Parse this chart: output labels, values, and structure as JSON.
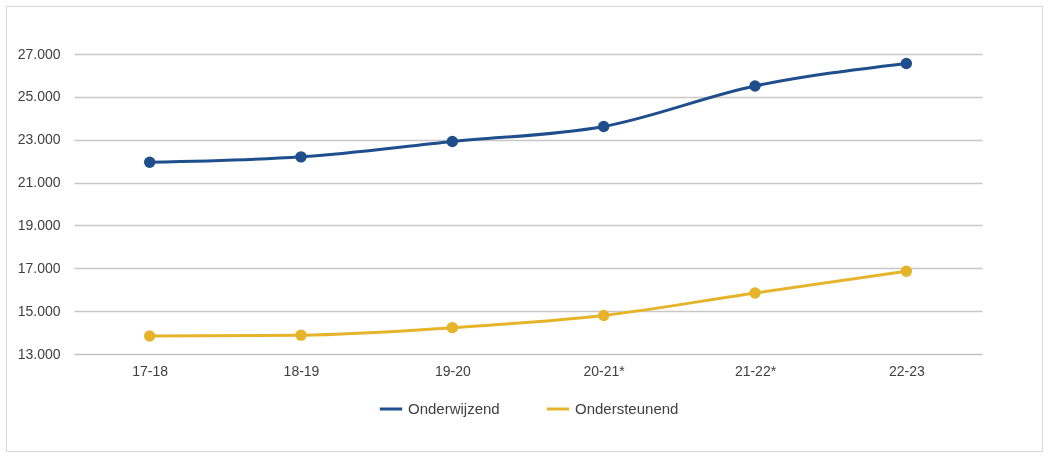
{
  "chart_data": {
    "type": "line",
    "categories": [
      "17-18",
      "18-19",
      "19-20",
      "20-21*",
      "21-22*",
      "22-23"
    ],
    "series": [
      {
        "name": "Onderwijzend",
        "color": "#1f4e8c",
        "values": [
          21950,
          22200,
          22920,
          23620,
          25510,
          26560
        ]
      },
      {
        "name": "Ondersteunend",
        "color": "#e6b42a",
        "values": [
          13840,
          13880,
          14230,
          14800,
          15850,
          16860
        ]
      }
    ],
    "ylim": [
      13000,
      27000
    ],
    "yticks": [
      {
        "value": 13000,
        "label": "13.000"
      },
      {
        "value": 15000,
        "label": "15.000"
      },
      {
        "value": 17000,
        "label": "17.000"
      },
      {
        "value": 19000,
        "label": "19.000"
      },
      {
        "value": 21000,
        "label": "21.000"
      },
      {
        "value": 23000,
        "label": "23.000"
      },
      {
        "value": 25000,
        "label": "25.000"
      },
      {
        "value": 27000,
        "label": "27.000"
      }
    ],
    "grid": "y",
    "legend": "bottom",
    "marker": "circle",
    "line_style": "solid"
  }
}
